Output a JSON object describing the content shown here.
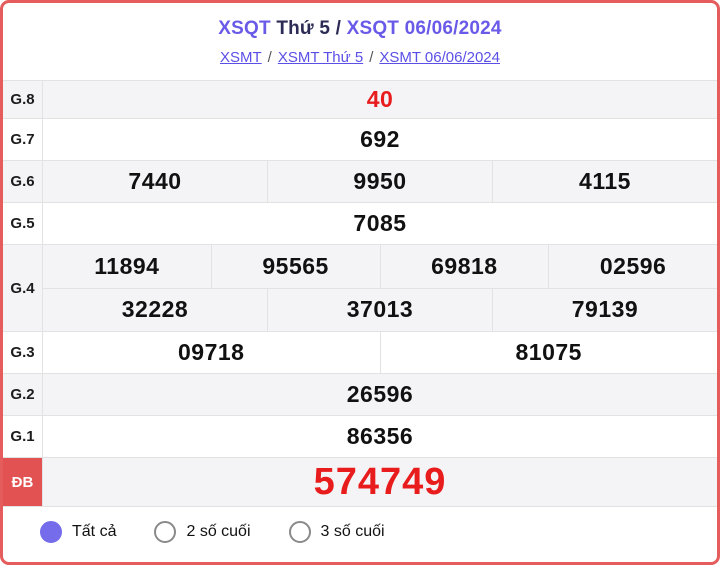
{
  "header": {
    "title": {
      "part1": "XSQT ",
      "part2": "Thứ 5 / ",
      "part3": "XSQT 06/06/2024"
    },
    "breadcrumb": {
      "links": [
        "XSMT",
        "XSMT Thứ 5",
        "XSMT 06/06/2024"
      ],
      "separator": "/"
    }
  },
  "results": {
    "rows": [
      {
        "label": "G.8",
        "groups": [
          [
            "40"
          ]
        ]
      },
      {
        "label": "G.7",
        "groups": [
          [
            "692"
          ]
        ]
      },
      {
        "label": "G.6",
        "groups": [
          [
            "7440",
            "9950",
            "4115"
          ]
        ]
      },
      {
        "label": "G.5",
        "groups": [
          [
            "7085"
          ]
        ]
      },
      {
        "label": "G.4",
        "groups": [
          [
            "11894",
            "95565",
            "69818",
            "02596"
          ],
          [
            "32228",
            "37013",
            "79139"
          ]
        ]
      },
      {
        "label": "G.3",
        "groups": [
          [
            "09718",
            "81075"
          ]
        ]
      },
      {
        "label": "G.2",
        "groups": [
          [
            "26596"
          ]
        ]
      },
      {
        "label": "G.1",
        "groups": [
          [
            "86356"
          ]
        ]
      },
      {
        "label": "ĐB",
        "groups": [
          [
            "574749"
          ]
        ]
      }
    ]
  },
  "filter": {
    "options": [
      {
        "label": "Tất cả",
        "selected": true
      },
      {
        "label": "2 số cuối",
        "selected": false
      },
      {
        "label": "3 số cuối",
        "selected": false
      }
    ]
  },
  "colors": {
    "accent_purple": "#6a5ae8",
    "link_purple": "#5b50e6",
    "title_navy": "#2b2b55",
    "highlight_red": "#e81c1c",
    "jackpot_cell_red": "#e25252",
    "page_border_red": "#e45c5c",
    "row_gray": "#f4f4f6"
  }
}
